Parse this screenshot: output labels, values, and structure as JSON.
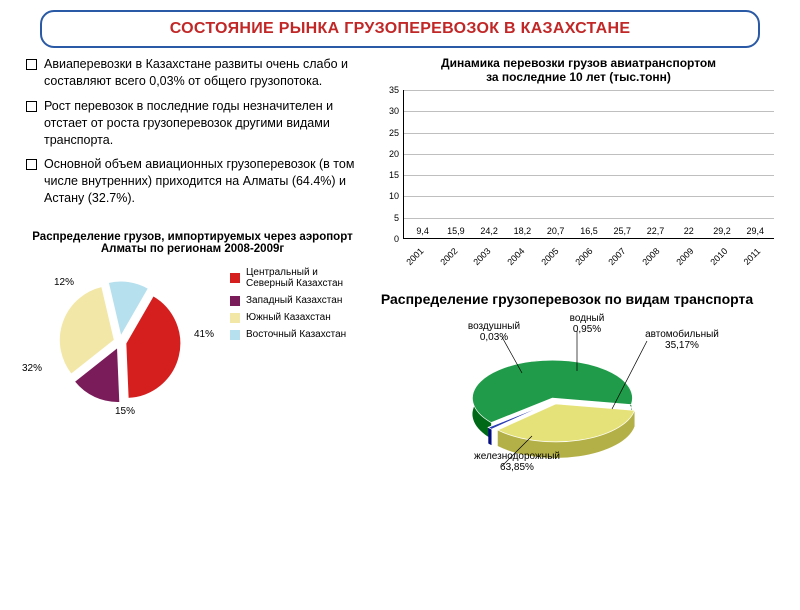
{
  "title": "СОСТОЯНИЕ РЫНКА ГРУЗОПЕРЕВОЗОК В КАЗАХСТАНЕ",
  "bullets": [
    "Авиаперевозки в Казахстане развиты очень слабо и составляют всего 0,03% от общего грузопотока.",
    "Рост перевозок в последние годы незначителен и отстает от роста грузоперевозок другими видами транспорта.",
    "Основной объем авиационных грузоперевозок (в том числе внутренних) приходится на Алматы (64.4%) и Астану (32.7%)."
  ],
  "barChart": {
    "title_line1": "Динамика перевозки грузов авиатранспортом",
    "title_line2": "за последние 10 лет (тыс.тонн)",
    "categories": [
      "2001",
      "2002",
      "2003",
      "2004",
      "2005",
      "2006",
      "2007",
      "2008",
      "2009",
      "2010",
      "2011"
    ],
    "values": [
      9.4,
      15.9,
      24.2,
      18.2,
      20.7,
      16.5,
      25.7,
      22.7,
      22.0,
      29.2,
      29.4
    ],
    "ylim": [
      0,
      35
    ],
    "ytick_step": 5,
    "bar_color": "#2a3fb5",
    "grid_color": "#bfbfbf",
    "label_fontsize": 9
  },
  "pie1": {
    "title": "Распределение грузов, импортируемых через аэропорт Алматы по регионам 2008-2009г",
    "slices": [
      {
        "label": "Центральный и Северный Казахстан",
        "value": 41,
        "color": "#d51f1f"
      },
      {
        "label": "Западный Казахстан",
        "value": 15,
        "color": "#7b1c5a"
      },
      {
        "label": "Южный Казахстан",
        "value": 32,
        "color": "#f2e7a6"
      },
      {
        "label": "Восточный Казахстан",
        "value": 12,
        "color": "#b7e0ee"
      }
    ],
    "pct_labels": {
      "p41": "41%",
      "p15": "15%",
      "p32": "32%",
      "p12": "12%"
    }
  },
  "pie2": {
    "title": "Распределение грузоперевозок по видам транспорта",
    "slices": [
      {
        "label": "железнодорожный",
        "value": 63.85,
        "color": "#1f9b4a",
        "display": "железнодорожный 63,85%"
      },
      {
        "label": "автомобильный",
        "value": 35.17,
        "color": "#e6e27a",
        "display": "автомобильный 35,17%"
      },
      {
        "label": "водный",
        "value": 0.95,
        "color": "#2b3fb5",
        "display": "водный 0,95%"
      },
      {
        "label": "воздушный",
        "value": 0.03,
        "color": "#b44b8a",
        "display": "воздушный 0,03%"
      }
    ]
  },
  "colors": {
    "title_border": "#2a5aa5",
    "title_text": "#c22727"
  }
}
